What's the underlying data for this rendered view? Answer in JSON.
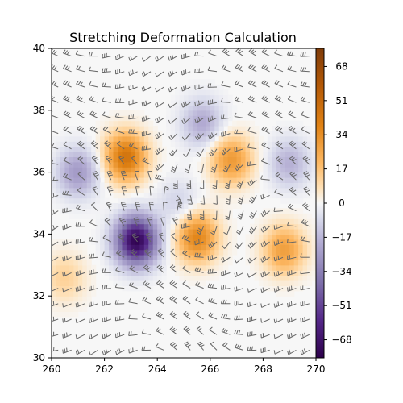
{
  "chart_data": {
    "type": "heatmap",
    "title": "Stretching Deformation Calculation",
    "xlabel": "",
    "ylabel": "",
    "xlim": [
      260,
      270
    ],
    "ylim": [
      30,
      40
    ],
    "x_ticks": [
      "260",
      "262",
      "264",
      "266",
      "268",
      "270"
    ],
    "y_ticks": [
      "30",
      "32",
      "34",
      "36",
      "38",
      "40"
    ],
    "colorbar": {
      "colormap": "PuOr_r",
      "range": [
        -77,
        77
      ],
      "ticks": [
        "68",
        "51",
        "34",
        "17",
        "0",
        "−17",
        "−34",
        "−51",
        "−68"
      ],
      "colors": {
        "min": "#2d004b",
        "mid": "#f7f7f7",
        "max": "#7f3b08"
      }
    },
    "field_features": [
      {
        "x": 263.2,
        "y": 33.8,
        "value": -75
      },
      {
        "x": 262.8,
        "y": 36.5,
        "value": 45
      },
      {
        "x": 261.0,
        "y": 36.0,
        "value": -25
      },
      {
        "x": 265.5,
        "y": 33.9,
        "value": 38
      },
      {
        "x": 266.8,
        "y": 36.4,
        "value": 30
      },
      {
        "x": 268.8,
        "y": 33.5,
        "value": 28
      },
      {
        "x": 265.7,
        "y": 37.6,
        "value": -20
      },
      {
        "x": 269.0,
        "y": 36.3,
        "value": -18
      },
      {
        "x": 260.5,
        "y": 32.6,
        "value": 12
      },
      {
        "x": 264.8,
        "y": 35.0,
        "value": -10
      }
    ],
    "wind_barbs": {
      "shown": true,
      "color": "#666666"
    },
    "grid": false
  }
}
